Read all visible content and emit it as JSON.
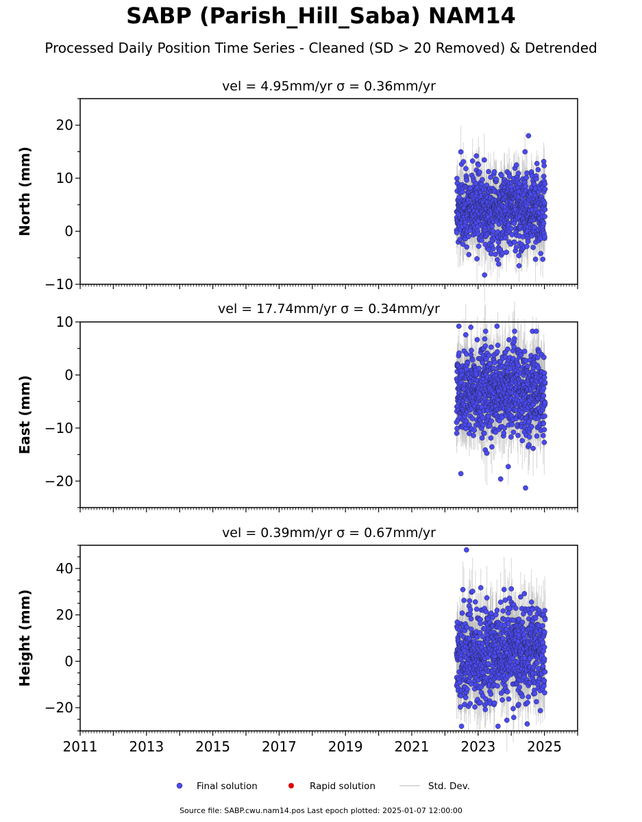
{
  "title": "SABP (Parish_Hill_Saba) NAM14",
  "subtitle": "Processed Daily Position Time Series - Cleaned (SD > 20 Removed) & Detrended",
  "legend": [
    {
      "label": "Final solution",
      "color": "#4a4af0",
      "marker": "circle"
    },
    {
      "label": "Rapid solution",
      "color": "#e00000",
      "marker": "circle"
    },
    {
      "label": "Std. Dev.",
      "color": "#cccccc",
      "marker": "line"
    }
  ],
  "source_note": "Source file: SABP.cwu.nam14.pos  Last epoch plotted: 2025-01-07 12:00:00",
  "colors": {
    "final": "#4a4af0",
    "rapid": "#e00000",
    "stddev": "#bbbbbb"
  },
  "chart_data": [
    {
      "type": "scatter",
      "panel": "north",
      "title": "vel = 4.95mm/yr   σ = 0.36mm/yr",
      "ylabel": "North (mm)",
      "xlim": [
        2011,
        2026
      ],
      "ylim": [
        -10,
        25
      ],
      "y_ticks": [
        -10,
        0,
        10,
        20
      ],
      "x_ticks": [
        2011,
        2013,
        2015,
        2017,
        2019,
        2021,
        2023,
        2025
      ],
      "data_range": [
        2022.35,
        2025.02
      ],
      "approx_mean": 4,
      "approx_sd": 3.5,
      "notable_points": [
        [
          2024.52,
          18.0
        ],
        [
          2022.95,
          14.2
        ],
        [
          2023.62,
          -6.2
        ],
        [
          2022.72,
          -4.4
        ],
        [
          2024.23,
          -4.6
        ]
      ]
    },
    {
      "type": "scatter",
      "panel": "east",
      "title": "vel = 17.74mm/yr   σ = 0.34mm/yr",
      "ylabel": "East (mm)",
      "xlim": [
        2011,
        2026
      ],
      "ylim": [
        -25,
        10
      ],
      "y_ticks": [
        -20,
        -10,
        0,
        10
      ],
      "x_ticks": [
        2011,
        2013,
        2015,
        2017,
        2019,
        2021,
        2023,
        2025
      ],
      "data_range": [
        2022.35,
        2025.02
      ],
      "approx_mean": -3,
      "approx_sd": 4.2,
      "notable_points": [
        [
          2022.42,
          9.2
        ],
        [
          2023.57,
          9.2
        ],
        [
          2022.78,
          9.0
        ],
        [
          2022.48,
          -18.6
        ],
        [
          2024.43,
          -21.3
        ],
        [
          2023.68,
          -19.6
        ]
      ]
    },
    {
      "type": "scatter",
      "panel": "height",
      "title": "vel = 0.39mm/yr   σ = 0.67mm/yr",
      "ylabel": "Height (mm)",
      "xlim": [
        2011,
        2026
      ],
      "ylim": [
        -30,
        50
      ],
      "y_ticks": [
        -20,
        0,
        20,
        40
      ],
      "x_ticks": [
        2011,
        2013,
        2015,
        2017,
        2019,
        2021,
        2023,
        2025
      ],
      "data_range": [
        2022.35,
        2025.02
      ],
      "approx_mean": 3,
      "approx_sd": 10,
      "notable_points": [
        [
          2022.65,
          48.0
        ],
        [
          2022.5,
          -28.0
        ],
        [
          2023.6,
          -28.0
        ],
        [
          2024.48,
          -27.0
        ]
      ]
    }
  ]
}
